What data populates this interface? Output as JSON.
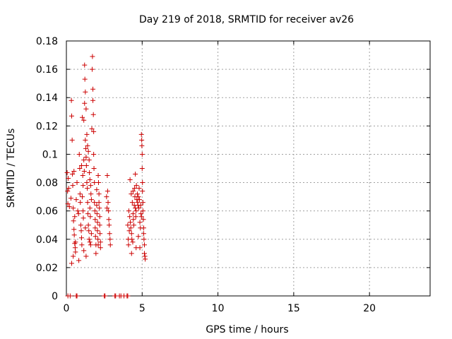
{
  "chart_data": {
    "type": "scatter",
    "title": "Day 219 of 2018, SRMTID for receiver av26",
    "xlabel": "GPS time / hours",
    "ylabel": "SRMTID / TECUs",
    "xlim": [
      0,
      24
    ],
    "ylim": [
      0,
      0.18
    ],
    "x_ticks": [
      0,
      5,
      10,
      15,
      20
    ],
    "x_tick_labels": [
      "0",
      "5",
      "10",
      "15",
      "20"
    ],
    "y_ticks": [
      0,
      0.02,
      0.04,
      0.06,
      0.08,
      0.1,
      0.12,
      0.14,
      0.16,
      0.18
    ],
    "y_tick_labels": [
      "0",
      "0.02",
      "0.04",
      "0.06",
      "0.08",
      "0.1",
      "0.12",
      "0.14",
      "0.16",
      "0.18"
    ],
    "grid": true,
    "marker": "plus",
    "color": "#cc0000",
    "series": [
      {
        "name": "SRMTID",
        "points": [
          [
            0.05,
            0.087
          ],
          [
            0.08,
            0.074
          ],
          [
            0.1,
            0.065
          ],
          [
            0.12,
            0.083
          ],
          [
            0.15,
            0.076
          ],
          [
            0.2,
            0.063
          ],
          [
            0.3,
            0.069
          ],
          [
            0.33,
            0.138
          ],
          [
            0.35,
            0.127
          ],
          [
            0.38,
            0.11
          ],
          [
            0.4,
            0.086
          ],
          [
            0.42,
            0.078
          ],
          [
            0.45,
            0.062
          ],
          [
            0.47,
            0.053
          ],
          [
            0.5,
            0.047
          ],
          [
            0.52,
            0.043
          ],
          [
            0.55,
            0.037
          ],
          [
            0.58,
            0.034
          ],
          [
            0.6,
            0.031
          ],
          [
            0.35,
            0.023
          ],
          [
            0.45,
            0.028
          ],
          [
            0.5,
            0.088
          ],
          [
            0.55,
            0.056
          ],
          [
            0.6,
            0.038
          ],
          [
            0.65,
            0.068
          ],
          [
            0.7,
            0.08
          ],
          [
            0.75,
            0.06
          ],
          [
            0.8,
            0.058
          ],
          [
            0.82,
            0.025
          ],
          [
            0.85,
            0.1
          ],
          [
            0.88,
            0.09
          ],
          [
            0.9,
            0.072
          ],
          [
            0.92,
            0.066
          ],
          [
            0.95,
            0.05
          ],
          [
            0.98,
            0.046
          ],
          [
            1.0,
            0.092
          ],
          [
            1.0,
            0.041
          ],
          [
            1.02,
            0.036
          ],
          [
            1.05,
            0.126
          ],
          [
            1.05,
            0.07
          ],
          [
            1.08,
            0.085
          ],
          [
            1.1,
            0.078
          ],
          [
            1.1,
            0.06
          ],
          [
            1.12,
            0.055
          ],
          [
            1.15,
            0.124
          ],
          [
            1.15,
            0.096
          ],
          [
            1.18,
            0.088
          ],
          [
            1.2,
            0.136
          ],
          [
            1.2,
            0.163
          ],
          [
            1.22,
            0.153
          ],
          [
            1.25,
            0.144
          ],
          [
            1.25,
            0.11
          ],
          [
            1.28,
            0.104
          ],
          [
            1.3,
            0.132
          ],
          [
            1.3,
            0.098
          ],
          [
            1.32,
            0.092
          ],
          [
            1.35,
            0.114
          ],
          [
            1.35,
            0.08
          ],
          [
            1.38,
            0.076
          ],
          [
            1.4,
            0.106
          ],
          [
            1.4,
            0.066
          ],
          [
            1.42,
            0.058
          ],
          [
            1.45,
            0.102
          ],
          [
            1.45,
            0.05
          ],
          [
            1.48,
            0.046
          ],
          [
            1.5,
            0.096
          ],
          [
            1.5,
            0.04
          ],
          [
            1.52,
            0.087
          ],
          [
            1.55,
            0.082
          ],
          [
            1.55,
            0.062
          ],
          [
            1.58,
            0.056
          ],
          [
            1.6,
            0.078
          ],
          [
            1.6,
            0.036
          ],
          [
            1.62,
            0.072
          ],
          [
            1.65,
            0.068
          ],
          [
            1.65,
            0.044
          ],
          [
            1.68,
            0.118
          ],
          [
            1.7,
            0.16
          ],
          [
            1.72,
            0.169
          ],
          [
            1.75,
            0.146
          ],
          [
            1.75,
            0.138
          ],
          [
            1.78,
            0.128
          ],
          [
            1.8,
            0.116
          ],
          [
            1.8,
            0.1
          ],
          [
            1.82,
            0.09
          ],
          [
            1.85,
            0.08
          ],
          [
            1.85,
            0.066
          ],
          [
            1.88,
            0.06
          ],
          [
            1.9,
            0.054
          ],
          [
            1.9,
            0.048
          ],
          [
            1.92,
            0.042
          ],
          [
            1.95,
            0.036
          ],
          [
            1.95,
            0.03
          ],
          [
            2.0,
            0.075
          ],
          [
            2.0,
            0.064
          ],
          [
            2.02,
            0.058
          ],
          [
            2.05,
            0.052
          ],
          [
            2.05,
            0.046
          ],
          [
            2.08,
            0.04
          ],
          [
            2.1,
            0.036
          ],
          [
            2.1,
            0.085
          ],
          [
            2.12,
            0.08
          ],
          [
            2.15,
            0.072
          ],
          [
            2.15,
            0.066
          ],
          [
            2.18,
            0.062
          ],
          [
            2.2,
            0.056
          ],
          [
            2.2,
            0.05
          ],
          [
            2.22,
            0.044
          ],
          [
            2.25,
            0.038
          ],
          [
            2.25,
            0.034
          ],
          [
            1.3,
            0.028
          ],
          [
            1.15,
            0.032
          ],
          [
            1.25,
            0.048
          ],
          [
            1.55,
            0.038
          ],
          [
            2.7,
            0.085
          ],
          [
            2.72,
            0.074
          ],
          [
            2.75,
            0.066
          ],
          [
            2.78,
            0.06
          ],
          [
            2.8,
            0.054
          ],
          [
            2.82,
            0.05
          ],
          [
            2.85,
            0.044
          ],
          [
            2.88,
            0.04
          ],
          [
            2.9,
            0.036
          ],
          [
            2.65,
            0.07
          ],
          [
            2.68,
            0.062
          ],
          [
            4.05,
            0.05
          ],
          [
            4.08,
            0.04
          ],
          [
            4.1,
            0.036
          ],
          [
            4.12,
            0.06
          ],
          [
            4.15,
            0.046
          ],
          [
            4.18,
            0.056
          ],
          [
            4.2,
            0.082
          ],
          [
            4.22,
            0.052
          ],
          [
            4.25,
            0.048
          ],
          [
            4.28,
            0.072
          ],
          [
            4.3,
            0.044
          ],
          [
            4.32,
            0.04
          ],
          [
            4.35,
            0.066
          ],
          [
            4.38,
            0.038
          ],
          [
            4.4,
            0.058
          ],
          [
            4.42,
            0.054
          ],
          [
            4.45,
            0.05
          ],
          [
            4.48,
            0.064
          ],
          [
            4.5,
            0.076
          ],
          [
            4.52,
            0.07
          ],
          [
            4.55,
            0.062
          ],
          [
            4.58,
            0.056
          ],
          [
            4.6,
            0.06
          ],
          [
            4.62,
            0.078
          ],
          [
            4.65,
            0.068
          ],
          [
            4.68,
            0.072
          ],
          [
            4.7,
            0.066
          ],
          [
            4.72,
            0.064
          ],
          [
            4.75,
            0.07
          ],
          [
            4.78,
            0.062
          ],
          [
            4.8,
            0.076
          ],
          [
            4.82,
            0.068
          ],
          [
            4.85,
            0.052
          ],
          [
            4.88,
            0.048
          ],
          [
            4.9,
            0.064
          ],
          [
            4.92,
            0.058
          ],
          [
            4.95,
            0.114
          ],
          [
            4.97,
            0.11
          ],
          [
            4.98,
            0.106
          ],
          [
            5.0,
            0.1
          ],
          [
            5.0,
            0.09
          ],
          [
            5.02,
            0.08
          ],
          [
            5.02,
            0.074
          ],
          [
            5.05,
            0.066
          ],
          [
            5.05,
            0.06
          ],
          [
            5.08,
            0.054
          ],
          [
            5.1,
            0.048
          ],
          [
            5.1,
            0.044
          ],
          [
            5.12,
            0.04
          ],
          [
            5.15,
            0.036
          ],
          [
            5.15,
            0.03
          ],
          [
            5.18,
            0.028
          ],
          [
            5.2,
            0.026
          ],
          [
            4.3,
            0.03
          ],
          [
            4.6,
            0.034
          ],
          [
            4.75,
            0.042
          ],
          [
            4.4,
            0.074
          ],
          [
            4.55,
            0.086
          ],
          [
            4.95,
            0.056
          ],
          [
            4.85,
            0.034
          ],
          [
            0.1,
            0.0
          ],
          [
            0.25,
            0.0
          ],
          [
            0.65,
            0.0
          ],
          [
            0.7,
            0.0
          ],
          [
            2.5,
            0.0
          ],
          [
            2.55,
            0.0
          ],
          [
            3.2,
            0.0
          ],
          [
            3.25,
            0.0
          ],
          [
            3.5,
            0.0
          ],
          [
            3.6,
            0.0
          ],
          [
            3.8,
            0.0
          ],
          [
            4.0,
            0.0
          ],
          [
            4.05,
            0.0
          ]
        ]
      }
    ]
  }
}
